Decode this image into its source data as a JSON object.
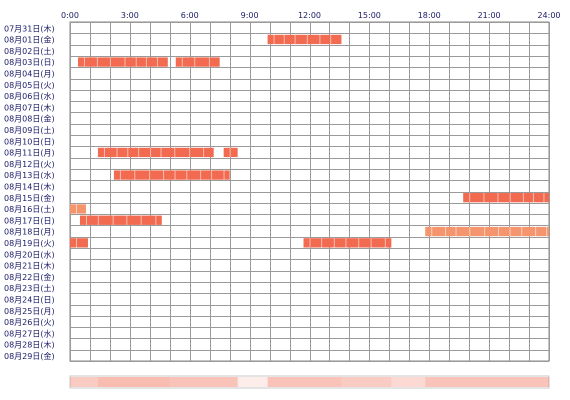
{
  "chart_data": {
    "type": "heatmap",
    "x_ticks": [
      "0:00",
      "3:00",
      "6:00",
      "9:00",
      "12:00",
      "15:00",
      "18:00",
      "21:00",
      "24:00"
    ],
    "x_range_hours": [
      0,
      24
    ],
    "grid": true,
    "days": [
      "07月31日(木)",
      "08月01日(金)",
      "08月02日(土)",
      "08月03日(日)",
      "08月04日(月)",
      "08月05日(火)",
      "08月06日(水)",
      "08月07日(木)",
      "08月08日(金)",
      "08月09日(土)",
      "08月10日(日)",
      "08月11日(月)",
      "08月12日(火)",
      "08月13日(水)",
      "08月14日(木)",
      "08月15日(金)",
      "08月16日(土)",
      "08月17日(日)",
      "08月18日(月)",
      "08月19日(火)",
      "08月20日(水)",
      "08月21日(木)",
      "08月22日(金)",
      "08月23日(土)",
      "08月24日(日)",
      "08月25日(月)",
      "08月26日(火)",
      "08月27日(水)",
      "08月28日(木)",
      "08月29日(金)"
    ],
    "activity": [
      {
        "day": "08月01日(金)",
        "start": 9.9,
        "end": 13.6,
        "color": "#f26a50"
      },
      {
        "day": "08月03日(日)",
        "start": 0.4,
        "end": 4.9,
        "color": "#f26a50"
      },
      {
        "day": "08月03日(日)",
        "start": 5.3,
        "end": 7.5,
        "color": "#f26a50"
      },
      {
        "day": "08月11日(月)",
        "start": 1.4,
        "end": 7.2,
        "color": "#f26a50"
      },
      {
        "day": "08月11日(月)",
        "start": 7.7,
        "end": 8.4,
        "color": "#f26a50"
      },
      {
        "day": "08月13日(水)",
        "start": 2.2,
        "end": 8.0,
        "color": "#f26a50"
      },
      {
        "day": "08月15日(金)",
        "start": 19.7,
        "end": 24.0,
        "color": "#f26a50"
      },
      {
        "day": "08月16日(土)",
        "start": 0.0,
        "end": 0.8,
        "color": "#f5956d"
      },
      {
        "day": "08月17日(日)",
        "start": 0.5,
        "end": 4.6,
        "color": "#f26a50"
      },
      {
        "day": "08月18日(月)",
        "start": 17.8,
        "end": 24.0,
        "color": "#f5956d"
      },
      {
        "day": "08月19日(火)",
        "start": 0.0,
        "end": 0.9,
        "color": "#f26a50"
      },
      {
        "day": "08月19日(火)",
        "start": 11.7,
        "end": 16.1,
        "color": "#f26a50"
      }
    ],
    "summary_bar": [
      {
        "start": 0.0,
        "end": 1.4,
        "intensity": 0.35
      },
      {
        "start": 1.4,
        "end": 5.0,
        "intensity": 0.45
      },
      {
        "start": 5.0,
        "end": 8.4,
        "intensity": 0.4
      },
      {
        "start": 8.4,
        "end": 9.9,
        "intensity": 0.12
      },
      {
        "start": 9.9,
        "end": 13.6,
        "intensity": 0.4
      },
      {
        "start": 13.6,
        "end": 16.1,
        "intensity": 0.35
      },
      {
        "start": 16.1,
        "end": 17.8,
        "intensity": 0.25
      },
      {
        "start": 17.8,
        "end": 24.0,
        "intensity": 0.4
      }
    ]
  }
}
